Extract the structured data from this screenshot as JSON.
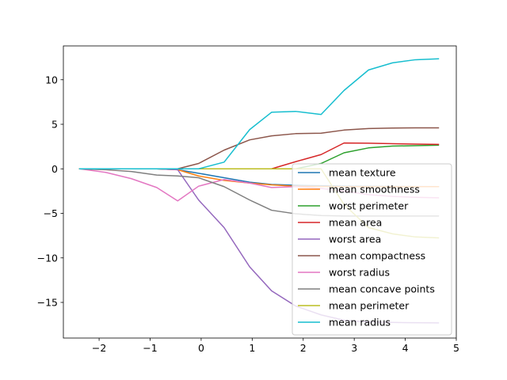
{
  "chart_data": {
    "type": "line",
    "title": "",
    "xlabel": "",
    "ylabel": "",
    "xlim": [
      -2.7,
      5.0
    ],
    "ylim": [
      -19.0,
      13.8
    ],
    "xticks": [
      -2,
      -1,
      0,
      1,
      2,
      3,
      4,
      5
    ],
    "yticks": [
      -15,
      -10,
      -5,
      0,
      5,
      10
    ],
    "xtick_labels": [
      "−2",
      "−1",
      "0",
      "1",
      "2",
      "3",
      "4",
      "5"
    ],
    "ytick_labels": [
      "−15",
      "−10",
      "−5",
      "0",
      "5",
      "10"
    ],
    "grid": false,
    "legend_position": "lower-right",
    "x": [
      -2.38,
      -1.87,
      -1.37,
      -0.87,
      -0.46,
      -0.05,
      0.45,
      0.95,
      1.38,
      1.85,
      2.35,
      2.8,
      3.28,
      3.75,
      4.2,
      4.65
    ],
    "series": [
      {
        "name": "mean texture",
        "color": "#1f77b4",
        "values": [
          0,
          0,
          0,
          0,
          -0.1,
          -0.5,
          -1.0,
          -1.5,
          -1.75,
          -1.85,
          -1.9,
          -1.95,
          -1.97,
          -1.98,
          -1.99,
          -2.0
        ]
      },
      {
        "name": "mean smoothness",
        "color": "#ff7f0e",
        "values": [
          0,
          0,
          0,
          0,
          -0.1,
          -0.8,
          -1.3,
          -1.6,
          -1.8,
          -1.95,
          -1.98,
          -2.0,
          -2.0,
          -2.0,
          -2.0,
          -2.0
        ]
      },
      {
        "name": "worst perimeter",
        "color": "#2ca02c",
        "values": [
          0,
          0,
          0,
          0,
          0,
          0,
          0,
          0,
          0,
          0,
          0.6,
          1.8,
          2.35,
          2.55,
          2.6,
          2.65
        ]
      },
      {
        "name": "mean area",
        "color": "#d62728",
        "values": [
          0,
          0,
          0,
          0,
          0,
          0,
          0,
          0,
          0,
          0.8,
          1.6,
          2.9,
          2.88,
          2.82,
          2.78,
          2.75
        ]
      },
      {
        "name": "worst area",
        "color": "#9467bd",
        "values": [
          0,
          0,
          0,
          0,
          -0.1,
          -3.5,
          -6.6,
          -11.0,
          -13.7,
          -15.4,
          -16.4,
          -17.0,
          -17.2,
          -17.25,
          -17.28,
          -17.3
        ]
      },
      {
        "name": "mean compactness",
        "color": "#8c564b",
        "values": [
          0,
          0,
          0,
          0,
          0,
          0.6,
          2.1,
          3.25,
          3.7,
          3.95,
          4.0,
          4.35,
          4.52,
          4.58,
          4.6,
          4.6
        ]
      },
      {
        "name": "worst radius",
        "color": "#e377c2",
        "values": [
          0,
          -0.4,
          -1.1,
          -2.1,
          -3.6,
          -1.95,
          -1.2,
          -1.6,
          -2.1,
          -2.0,
          -2.2,
          -2.5,
          -2.9,
          -3.1,
          -3.2,
          -3.25
        ]
      },
      {
        "name": "mean concave points",
        "color": "#7f7f7f",
        "values": [
          0,
          -0.1,
          -0.3,
          -0.7,
          -0.8,
          -1.0,
          -2.0,
          -3.5,
          -4.65,
          -5.05,
          -5.25,
          -5.3,
          -5.3,
          -5.3,
          -5.3,
          -5.3
        ]
      },
      {
        "name": "mean perimeter",
        "color": "#bcbd22",
        "values": [
          0,
          0,
          0,
          0,
          0,
          0,
          0,
          0,
          0,
          0,
          0,
          -4.0,
          -6.6,
          -7.3,
          -7.65,
          -7.75
        ]
      },
      {
        "name": "mean radius",
        "color": "#17becf",
        "values": [
          0,
          0,
          0,
          0,
          0,
          0,
          0.75,
          4.4,
          6.35,
          6.45,
          6.1,
          8.8,
          11.1,
          11.9,
          12.25,
          12.35
        ]
      }
    ]
  }
}
